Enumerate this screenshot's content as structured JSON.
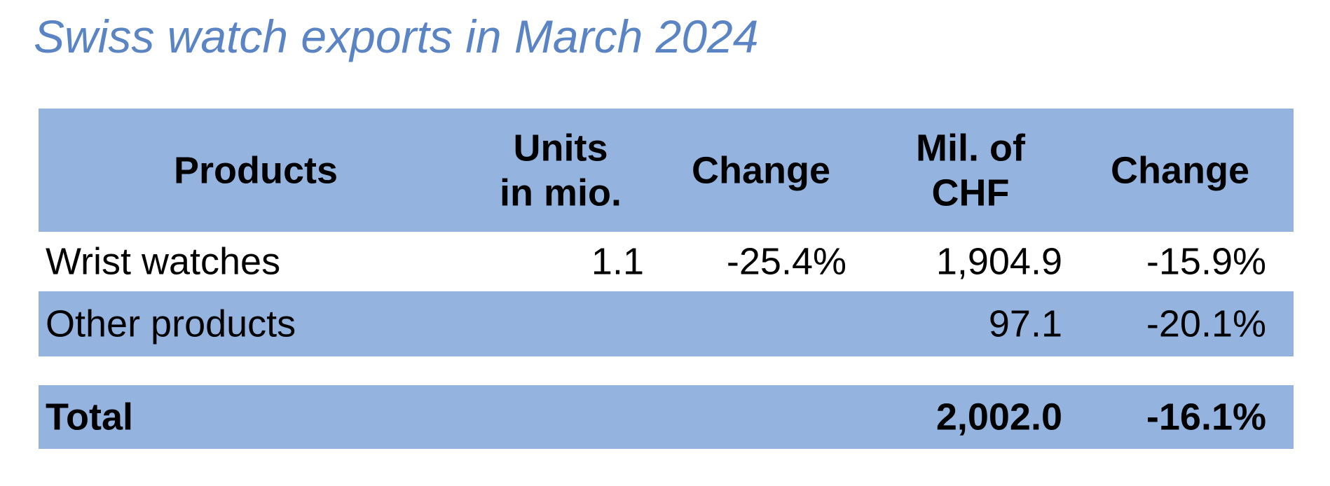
{
  "title": "Swiss watch exports in March 2024",
  "table": {
    "header": [
      [
        "Products"
      ],
      [
        "Units",
        "in mio."
      ],
      [
        "Change"
      ],
      [
        "Mil. of",
        "CHF"
      ],
      [
        "Change"
      ]
    ],
    "rows": [
      {
        "product": "Wrist watches",
        "units": "1.1",
        "units_change": "-25.4%",
        "chf": "1,904.9",
        "chf_change": "-15.9%"
      },
      {
        "product": "Other products",
        "chf": "97.1",
        "chf_change": "-20.1%"
      }
    ],
    "total": {
      "product": "Total",
      "chf": "2,002.0",
      "chf_change": "-16.1%"
    }
  }
}
